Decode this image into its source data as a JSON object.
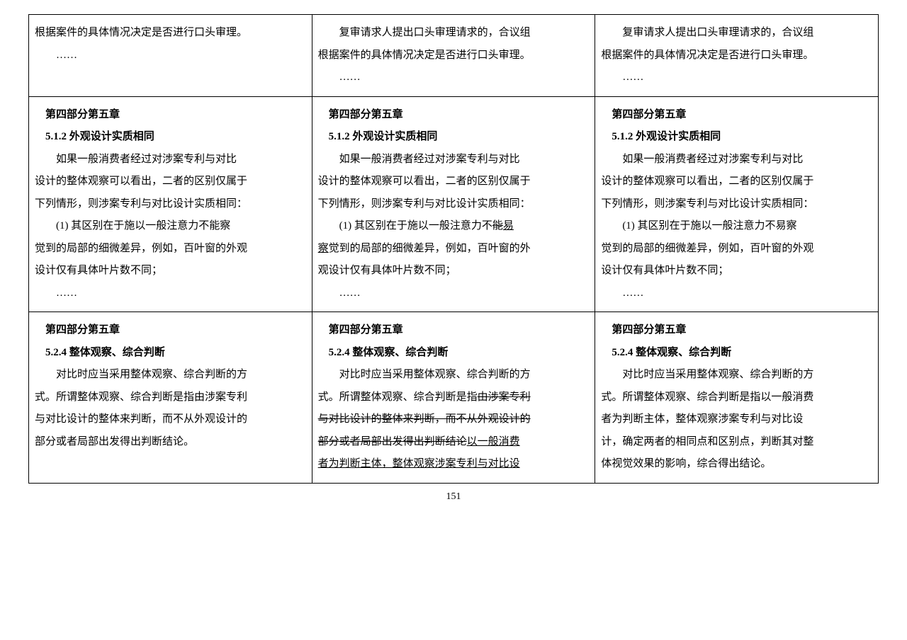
{
  "page_number": "151",
  "layout": {
    "columns": 3,
    "rows": 3,
    "border_color": "#000000",
    "background_color": "#ffffff"
  },
  "typography": {
    "font_family": "SimSun",
    "body_fontsize": 15,
    "line_height": 2.1,
    "text_color": "#000000"
  },
  "row1": {
    "col1": {
      "p1": "根据案件的具体情况决定是否进行口头审理。",
      "ellipsis": "……"
    },
    "col2": {
      "p1_indent": "复审请求人提出口头审理请求的，合议组",
      "p2": "根据案件的具体情况决定是否进行口头审理。",
      "ellipsis": "……"
    },
    "col3": {
      "p1_indent": "复审请求人提出口头审理请求的，合议组",
      "p2": "根据案件的具体情况决定是否进行口头审理。",
      "ellipsis": "……"
    }
  },
  "row2": {
    "heading": "第四部分第五章",
    "subheading": "5.1.2 外观设计实质相同",
    "col1": {
      "p1_indent": "如果一般消费者经过对涉案专利与对比",
      "p2": "设计的整体观察可以看出，二者的区别仅属于",
      "p3": "下列情形，则涉案专利与对比设计实质相同：",
      "p4_indent": "(1) 其区别在于施以一般注意力不能察",
      "p5": "觉到的局部的细微差异，例如，百叶窗的外观",
      "p6": "设计仅有具体叶片数不同；",
      "ellipsis": "……"
    },
    "col2": {
      "p1_indent": "如果一般消费者经过对涉案专利与对比",
      "p2": "设计的整体观察可以看出，二者的区别仅属于",
      "p3": "下列情形，则涉案专利与对比设计实质相同：",
      "p4_indent_before": "(1) 其区别在于施以一般注意力不",
      "p4_strike": "能",
      "p4_underline": "易",
      "p5_before": "",
      "p5_underline": "察",
      "p5_after": "觉到的局部的细微差异，例如，百叶窗的外",
      "p6": "观设计仅有具体叶片数不同；",
      "ellipsis": "……"
    },
    "col3": {
      "p1_indent": "如果一般消费者经过对涉案专利与对比",
      "p2": "设计的整体观察可以看出，二者的区别仅属于",
      "p3": "下列情形，则涉案专利与对比设计实质相同：",
      "p4_indent": "(1) 其区别在于施以一般注意力不易察",
      "p5": "觉到的局部的细微差异，例如，百叶窗的外观",
      "p6": "设计仅有具体叶片数不同；",
      "ellipsis": "……"
    }
  },
  "row3": {
    "heading": "第四部分第五章",
    "subheading": "5.2.4 整体观察、综合判断",
    "col1": {
      "p1_indent": "对比时应当采用整体观察、综合判断的方",
      "p2": "式。所谓整体观察、综合判断是指由涉案专利",
      "p3": "与对比设计的整体来判断，而不从外观设计的",
      "p4": "部分或者局部出发得出判断结论。"
    },
    "col2": {
      "p1_indent": "对比时应当采用整体观察、综合判断的方",
      "p2_before": "式。所谓整体观察、综合判断是指",
      "p2_strike": "由涉案专利",
      "p3_strike": "与对比设计的整体来判断，而不从外观设计的",
      "p4_strike": "部分或者局部出发得出判断结论",
      "p4_underline": "以一般消费",
      "p5_underline": "者为判断主体，整体观察涉案专利与对比设"
    },
    "col3": {
      "p1_indent": "对比时应当采用整体观察、综合判断的方",
      "p2": "式。所谓整体观察、综合判断是指以一般消费",
      "p3": "者为判断主体，整体观察涉案专利与对比设",
      "p4": "计，确定两者的相同点和区别点，判断其对整",
      "p5": "体视觉效果的影响，综合得出结论。"
    }
  }
}
